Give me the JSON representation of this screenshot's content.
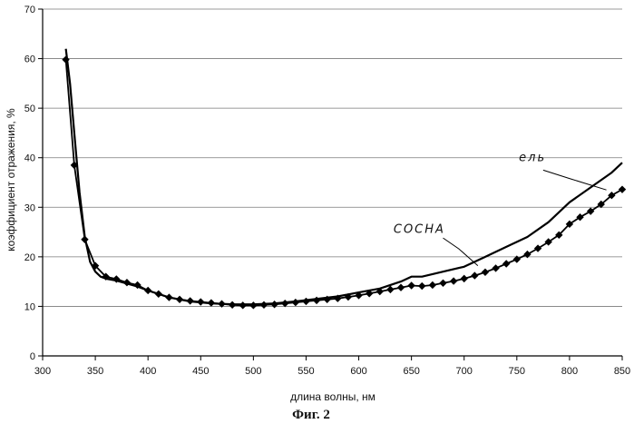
{
  "chart_data": {
    "type": "line",
    "title": "",
    "caption": "Фиг. 2",
    "xlabel": "длина волны, нм",
    "ylabel": "коэффициент отражения, %",
    "xlim": [
      300,
      850
    ],
    "ylim": [
      0,
      70
    ],
    "xticks": [
      300,
      350,
      400,
      450,
      500,
      550,
      600,
      650,
      700,
      750,
      800,
      850
    ],
    "yticks": [
      0,
      10,
      20,
      30,
      40,
      50,
      60,
      70
    ],
    "grid": true,
    "series": [
      {
        "name": "ель",
        "marker": "none",
        "x": [
          322,
          326,
          330,
          335,
          340,
          345,
          350,
          355,
          360,
          370,
          380,
          390,
          400,
          420,
          440,
          460,
          480,
          500,
          520,
          540,
          560,
          580,
          600,
          620,
          640,
          650,
          660,
          680,
          700,
          720,
          740,
          760,
          780,
          800,
          820,
          840,
          850
        ],
        "values": [
          62,
          55,
          45,
          33,
          24,
          19,
          17,
          16,
          15.6,
          15.2,
          14.6,
          14,
          13.2,
          11.8,
          11,
          10.6,
          10.4,
          10.4,
          10.6,
          11,
          11.5,
          12,
          12.8,
          13.6,
          15,
          16,
          16,
          17,
          18,
          20,
          22,
          24,
          27,
          31,
          34,
          37,
          39
        ]
      },
      {
        "name": "сосна",
        "marker": "diamond",
        "x": [
          322,
          330,
          340,
          350,
          360,
          370,
          380,
          390,
          400,
          410,
          420,
          430,
          440,
          450,
          460,
          470,
          480,
          490,
          500,
          510,
          520,
          530,
          540,
          550,
          560,
          570,
          580,
          590,
          600,
          610,
          620,
          630,
          640,
          650,
          660,
          670,
          680,
          690,
          700,
          710,
          720,
          730,
          740,
          750,
          760,
          770,
          780,
          790,
          800,
          810,
          820,
          830,
          840,
          850
        ],
        "values": [
          59.8,
          38.5,
          23.5,
          18.2,
          16,
          15.5,
          14.8,
          14.3,
          13.2,
          12.5,
          11.8,
          11.4,
          11.1,
          10.9,
          10.7,
          10.5,
          10.3,
          10.2,
          10.2,
          10.3,
          10.4,
          10.6,
          10.8,
          11,
          11.2,
          11.4,
          11.6,
          11.9,
          12.2,
          12.6,
          13,
          13.4,
          13.8,
          14.2,
          14.1,
          14.3,
          14.7,
          15.1,
          15.6,
          16.2,
          16.9,
          17.7,
          18.6,
          19.5,
          20.5,
          21.7,
          23,
          24.4,
          26.6,
          28,
          29.2,
          30.6,
          32.4,
          33.6
        ]
      }
    ],
    "annotations": [
      {
        "text": "ель"
      },
      {
        "text": "СОСНА"
      }
    ]
  }
}
